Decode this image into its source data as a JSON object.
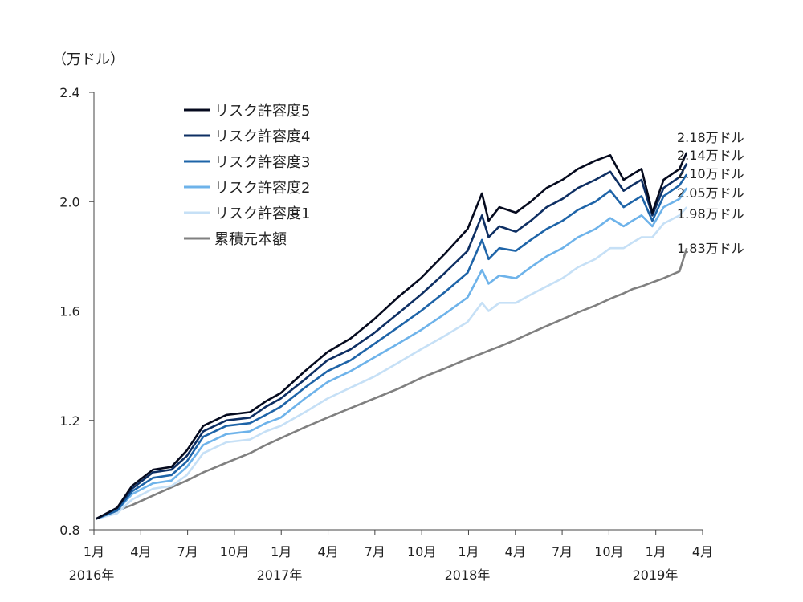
{
  "chart_data": {
    "type": "line",
    "unit_label": "（万ドル）",
    "ylim": [
      0.8,
      2.4
    ],
    "yticks": [
      "0.8",
      "1.2",
      "1.6",
      "2.0",
      "2.4"
    ],
    "ytick_values": [
      0.8,
      1.2,
      1.6,
      2.0,
      2.4
    ],
    "x_start": "2016-01",
    "x_end": "2019-04",
    "month_ticks": [
      "1月",
      "4月",
      "7月",
      "10月",
      "1月",
      "4月",
      "7月",
      "10月",
      "1月",
      "4月",
      "7月",
      "10月",
      "1月",
      "4月"
    ],
    "year_labels": [
      "2016年",
      "2017年",
      "2018年",
      "2019年"
    ],
    "legend_position": "top-left",
    "grid": false,
    "x": [
      "2016-01-05",
      "2016-02-15",
      "2016-03-15",
      "2016-04-25",
      "2016-05-31",
      "2016-06-30",
      "2016-08-01",
      "2016-09-15",
      "2016-10-31",
      "2016-12-01",
      "2016-12-30",
      "2017-02-15",
      "2017-03-31",
      "2017-05-15",
      "2017-06-30",
      "2017-08-15",
      "2017-09-29",
      "2017-11-15",
      "2017-12-29",
      "2018-01-26",
      "2018-02-08",
      "2018-03-01",
      "2018-04-02",
      "2018-05-01",
      "2018-06-01",
      "2018-07-02",
      "2018-08-01",
      "2018-09-04",
      "2018-10-03",
      "2018-10-29",
      "2018-11-15",
      "2018-12-03",
      "2018-12-24",
      "2019-01-15",
      "2019-02-15",
      "2019-03-01"
    ],
    "series": [
      {
        "name": "リスク許容度5",
        "color": "#050a1e",
        "values": [
          0.84,
          0.88,
          0.96,
          1.02,
          1.03,
          1.09,
          1.18,
          1.22,
          1.23,
          1.27,
          1.3,
          1.38,
          1.45,
          1.5,
          1.57,
          1.65,
          1.72,
          1.81,
          1.9,
          2.03,
          1.93,
          1.98,
          1.96,
          2.0,
          2.05,
          2.08,
          2.12,
          2.15,
          2.17,
          2.08,
          2.1,
          2.12,
          1.96,
          2.08,
          2.12,
          2.18
        ],
        "end_label": "2.18万ドル"
      },
      {
        "name": "リスク許容度4",
        "color": "#0e2f63",
        "values": [
          0.84,
          0.88,
          0.95,
          1.01,
          1.02,
          1.07,
          1.16,
          1.2,
          1.21,
          1.25,
          1.28,
          1.35,
          1.42,
          1.46,
          1.52,
          1.59,
          1.66,
          1.74,
          1.82,
          1.95,
          1.87,
          1.91,
          1.89,
          1.93,
          1.98,
          2.01,
          2.05,
          2.08,
          2.11,
          2.04,
          2.06,
          2.08,
          1.95,
          2.05,
          2.09,
          2.14
        ],
        "end_label": "2.14万ドル"
      },
      {
        "name": "リスク許容度3",
        "color": "#1e64a8",
        "values": [
          0.84,
          0.87,
          0.94,
          0.99,
          1.0,
          1.05,
          1.14,
          1.18,
          1.19,
          1.22,
          1.25,
          1.32,
          1.38,
          1.42,
          1.48,
          1.54,
          1.6,
          1.67,
          1.74,
          1.86,
          1.79,
          1.83,
          1.82,
          1.86,
          1.9,
          1.93,
          1.97,
          2.0,
          2.04,
          1.98,
          2.0,
          2.02,
          1.93,
          2.02,
          2.06,
          2.1
        ],
        "end_label": "2.10万ドル"
      },
      {
        "name": "リスク許容度2",
        "color": "#6eb3ea",
        "values": [
          0.84,
          0.87,
          0.93,
          0.97,
          0.98,
          1.03,
          1.11,
          1.15,
          1.16,
          1.19,
          1.21,
          1.28,
          1.34,
          1.38,
          1.43,
          1.48,
          1.53,
          1.59,
          1.65,
          1.75,
          1.7,
          1.73,
          1.72,
          1.76,
          1.8,
          1.83,
          1.87,
          1.9,
          1.94,
          1.91,
          1.93,
          1.95,
          1.91,
          1.98,
          2.01,
          2.05
        ],
        "end_label": "2.05万ドル"
      },
      {
        "name": "リスク許容度1",
        "color": "#c6e0f6",
        "values": [
          0.84,
          0.86,
          0.91,
          0.95,
          0.96,
          1.0,
          1.08,
          1.12,
          1.13,
          1.16,
          1.18,
          1.23,
          1.28,
          1.32,
          1.36,
          1.41,
          1.46,
          1.51,
          1.56,
          1.63,
          1.6,
          1.63,
          1.63,
          1.66,
          1.69,
          1.72,
          1.76,
          1.79,
          1.83,
          1.83,
          1.85,
          1.87,
          1.87,
          1.92,
          1.95,
          1.98
        ],
        "end_label": "1.98万ドル"
      },
      {
        "name": "累積元本額",
        "color": "#808080",
        "values": [
          0.84,
          0.87,
          0.89,
          0.925,
          0.955,
          0.98,
          1.01,
          1.045,
          1.08,
          1.11,
          1.135,
          1.175,
          1.21,
          1.245,
          1.28,
          1.315,
          1.355,
          1.39,
          1.425,
          1.445,
          1.455,
          1.47,
          1.495,
          1.52,
          1.545,
          1.57,
          1.595,
          1.62,
          1.645,
          1.665,
          1.68,
          1.69,
          1.705,
          1.72,
          1.745,
          1.83
        ],
        "end_label": "1.83万ドル"
      }
    ]
  }
}
